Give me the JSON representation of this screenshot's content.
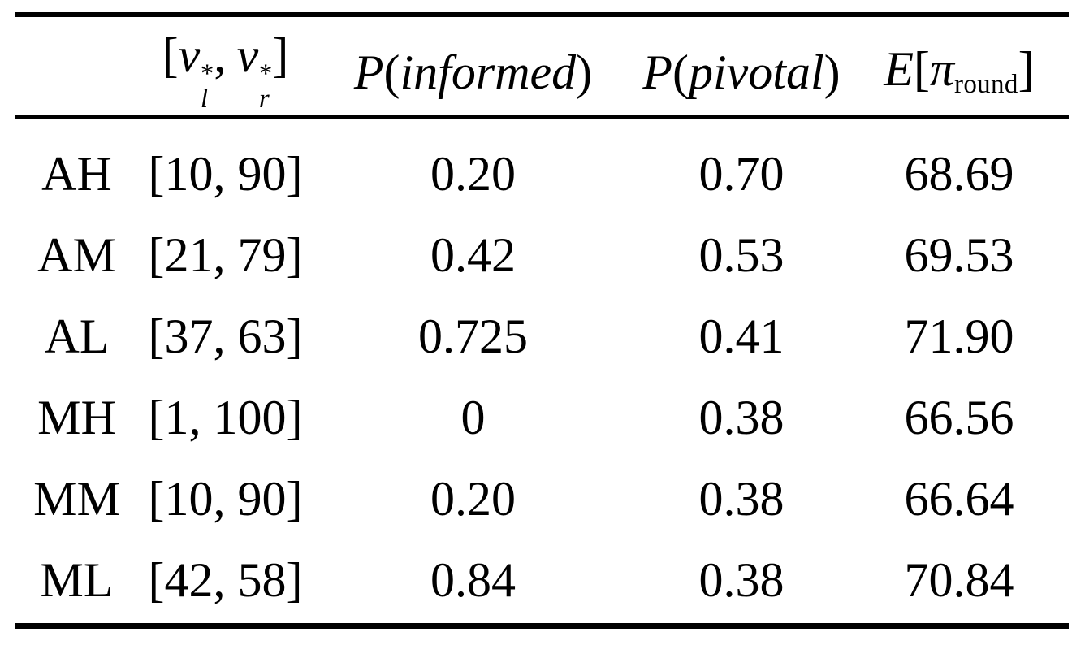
{
  "table": {
    "headers": {
      "row_label": "",
      "interval": {
        "open": "[",
        "v_left": "v",
        "sup_left": "*",
        "sub_left": "l",
        "comma": ",",
        "v_right": "v",
        "sup_right": "*",
        "sub_right": "r",
        "close": "]"
      },
      "p_informed": {
        "func": "P",
        "open": "(",
        "arg": "informed",
        "close": ")"
      },
      "p_pivotal": {
        "func": "P",
        "open": "(",
        "arg": "pivotal",
        "close": ")"
      },
      "e_round": {
        "func": "E",
        "open": "[",
        "pi": "π",
        "sub": "round",
        "close": "]"
      }
    },
    "rows": [
      {
        "label": "AH",
        "interval": "[10, 90]",
        "p_informed": "0.20",
        "p_pivotal": "0.70",
        "e_round": "68.69"
      },
      {
        "label": "AM",
        "interval": "[21, 79]",
        "p_informed": "0.42",
        "p_pivotal": "0.53",
        "e_round": "69.53"
      },
      {
        "label": "AL",
        "interval": "[37, 63]",
        "p_informed": "0.725",
        "p_pivotal": "0.41",
        "e_round": "71.90"
      },
      {
        "label": "MH",
        "interval": "[1, 100]",
        "p_informed": "0",
        "p_pivotal": "0.38",
        "e_round": "66.56"
      },
      {
        "label": "MM",
        "interval": "[10, 90]",
        "p_informed": "0.20",
        "p_pivotal": "0.38",
        "e_round": "66.64"
      },
      {
        "label": "ML",
        "interval": "[42, 58]",
        "p_informed": "0.84",
        "p_pivotal": "0.38",
        "e_round": "70.84"
      }
    ],
    "colors": {
      "text": "#000000",
      "rule": "#000000",
      "background": "#ffffff"
    }
  }
}
